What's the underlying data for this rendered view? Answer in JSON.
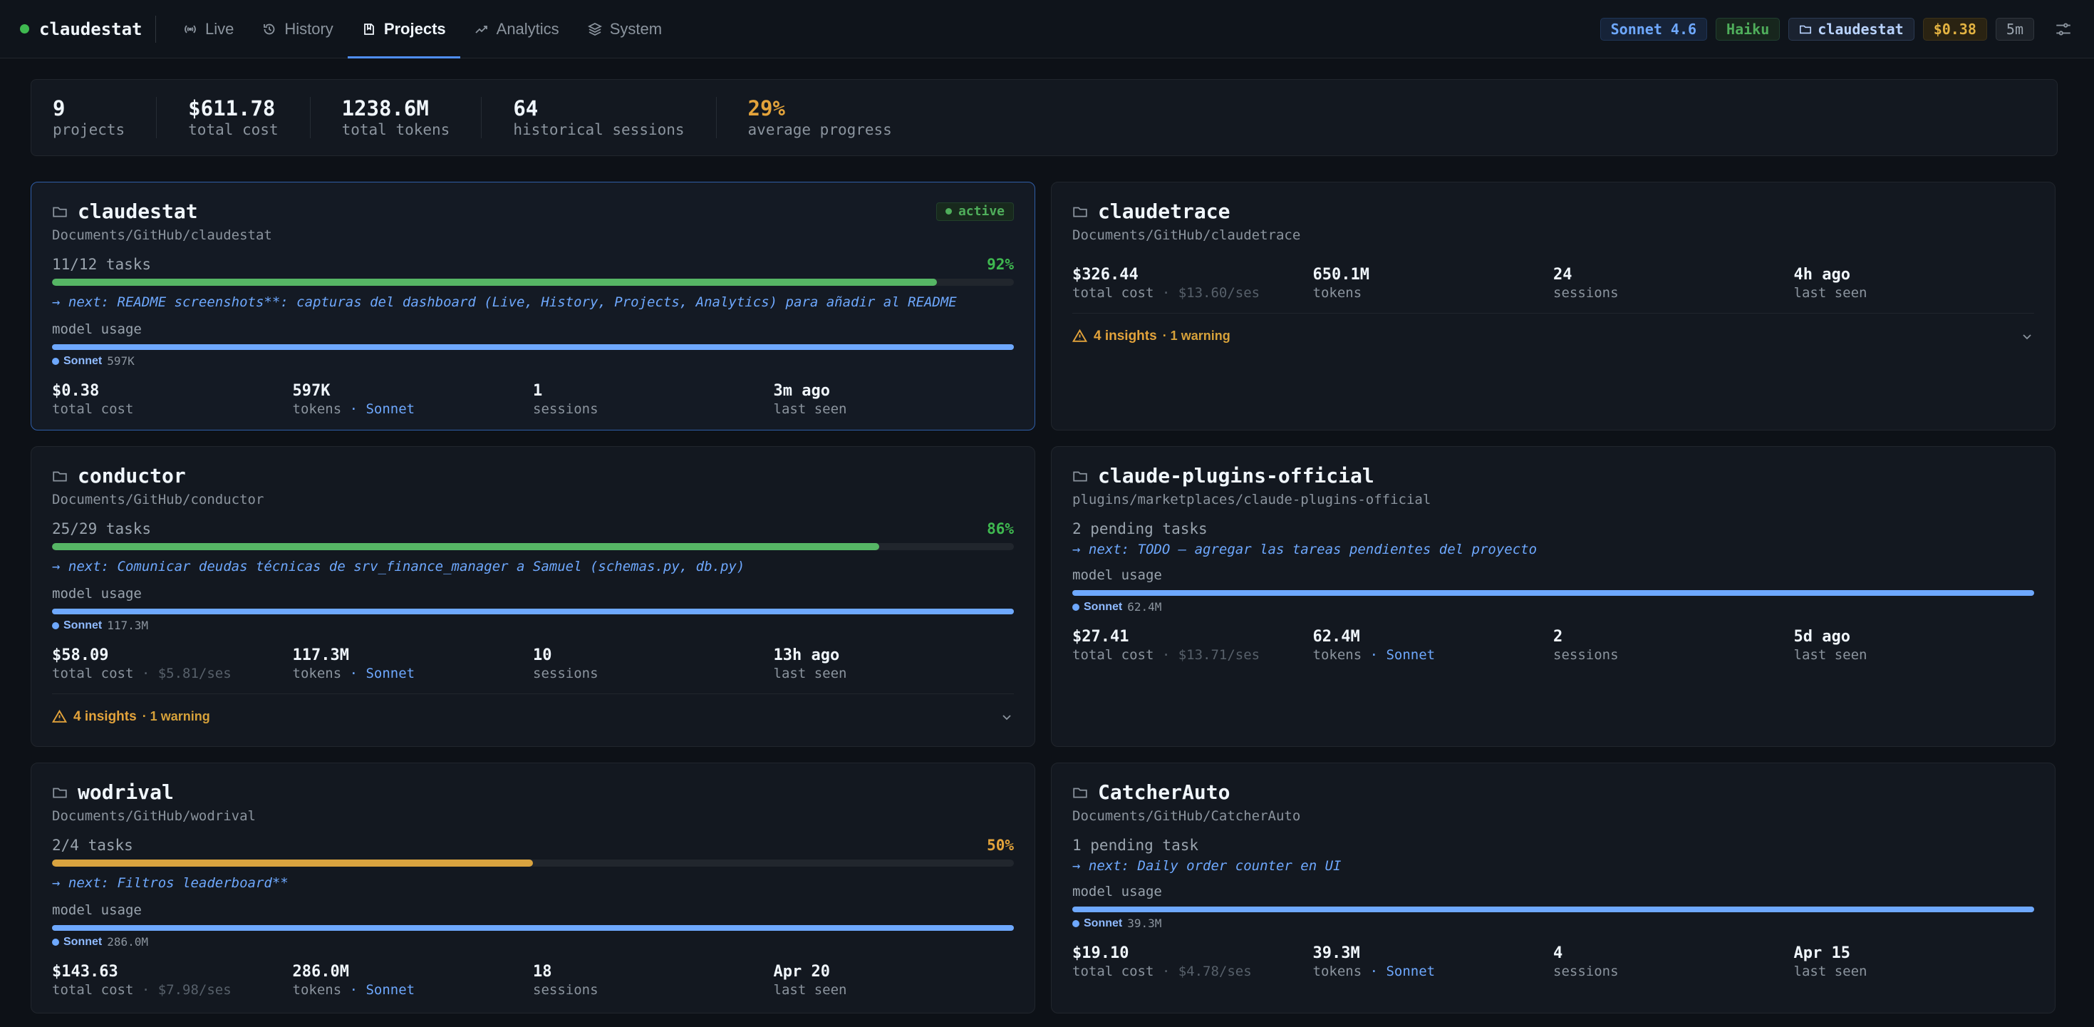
{
  "app": {
    "name": "claudestat",
    "tabs": [
      {
        "label": "Live",
        "icon": "pulse-icon"
      },
      {
        "label": "History",
        "icon": "history-icon"
      },
      {
        "label": "Projects",
        "icon": "book-icon"
      },
      {
        "label": "Analytics",
        "icon": "trend-icon"
      },
      {
        "label": "System",
        "icon": "layers-icon"
      }
    ],
    "active_tab": "Projects"
  },
  "status_pills": {
    "model": "Sonnet 4.6",
    "secondary_model": "Haiku",
    "project": "claudestat",
    "cost": "$0.38",
    "interval": "5m"
  },
  "summary": {
    "projects": {
      "value": "9",
      "label": "projects"
    },
    "total_cost": {
      "value": "$611.78",
      "label": "total cost"
    },
    "total_tokens": {
      "value": "1238.6M",
      "label": "total tokens"
    },
    "sessions": {
      "value": "64",
      "label": "historical sessions"
    },
    "progress": {
      "value": "29%",
      "label": "average progress"
    }
  },
  "labels": {
    "model_usage": "model usage",
    "total_cost": "total cost",
    "tokens": "tokens",
    "sessions": "sessions",
    "last_seen": "last seen",
    "active": "active",
    "model_suffix": "· Sonnet"
  },
  "projects": [
    {
      "name": "claudestat",
      "path": "Documents/GitHub/claudestat",
      "active": true,
      "tasks": "11/12 tasks",
      "progress_pct": "92%",
      "progress": 0.92,
      "next": "→ next: README screenshots**: capturas del dashboard (Live, History, Projects, Analytics) para añadir al README",
      "model": "Sonnet",
      "model_tokens": "597K",
      "cost": "$0.38",
      "cost_per_session": "",
      "tokens": "597K",
      "sessions": "1",
      "last_seen": "3m ago"
    },
    {
      "name": "claudetrace",
      "path": "Documents/GitHub/claudetrace",
      "cost": "$326.44",
      "cost_per_session": "· $13.60/ses",
      "tokens": "650.1M",
      "sessions": "24",
      "last_seen": "4h ago",
      "insights": "4 insights",
      "warnings": "· 1 warning"
    },
    {
      "name": "conductor",
      "path": "Documents/GitHub/conductor",
      "tasks": "25/29 tasks",
      "progress_pct": "86%",
      "progress": 0.86,
      "next": "→ next: Comunicar deudas técnicas de srv_finance_manager a Samuel (schemas.py, db.py)",
      "model": "Sonnet",
      "model_tokens": "117.3M",
      "cost": "$58.09",
      "cost_per_session": "· $5.81/ses",
      "tokens": "117.3M",
      "sessions": "10",
      "last_seen": "13h ago",
      "insights": "4 insights",
      "warnings": "· 1 warning"
    },
    {
      "name": "claude-plugins-official",
      "path": "plugins/marketplaces/claude-plugins-official",
      "pending": "2 pending tasks",
      "next": "→ next: TODO — agregar las tareas pendientes del proyecto",
      "model": "Sonnet",
      "model_tokens": "62.4M",
      "cost": "$27.41",
      "cost_per_session": "· $13.71/ses",
      "tokens": "62.4M",
      "sessions": "2",
      "last_seen": "5d ago"
    },
    {
      "name": "wodrival",
      "path": "Documents/GitHub/wodrival",
      "tasks": "2/4 tasks",
      "progress_pct": "50%",
      "progress": 0.5,
      "next": "→ next: Filtros leaderboard**",
      "model": "Sonnet",
      "model_tokens": "286.0M",
      "cost": "$143.63",
      "cost_per_session": "· $7.98/ses",
      "tokens": "286.0M",
      "sessions": "18",
      "last_seen": "Apr 20"
    },
    {
      "name": "CatcherAuto",
      "path": "Documents/GitHub/CatcherAuto",
      "pending": "1 pending task",
      "next": "→ next: Daily order counter en UI",
      "model": "Sonnet",
      "model_tokens": "39.3M",
      "cost": "$19.10",
      "cost_per_session": "· $4.78/ses",
      "tokens": "39.3M",
      "sessions": "4",
      "last_seen": "Apr 15"
    }
  ],
  "colors": {
    "background": "#0d1117",
    "accent": "#4f8ff7",
    "green": "#3fb950",
    "orange": "#e3a33b",
    "model_blue": "#6ea8fe"
  }
}
